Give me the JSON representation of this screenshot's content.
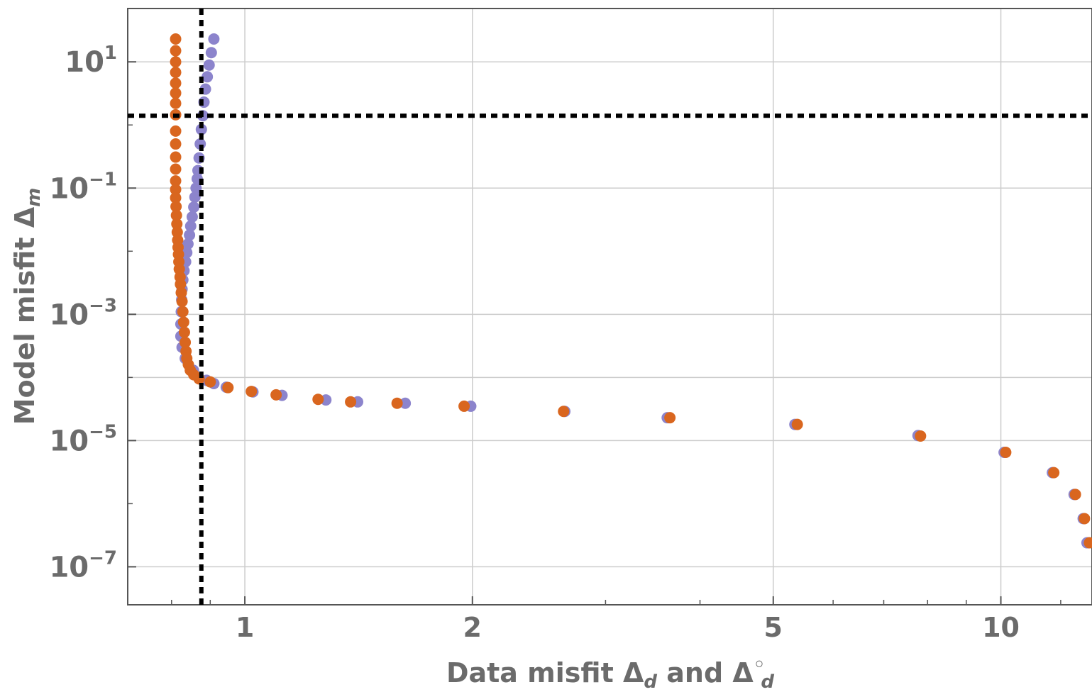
{
  "chart_data": {
    "type": "scatter",
    "title": "",
    "xlabel": "Data misfit Δd and Δ◦d",
    "ylabel": "Model misfit Δm",
    "xlabel_parts": {
      "main": "Data misfit Δ",
      "sub1": "d",
      "mid": " and Δ",
      "sup": "◦",
      "sub2": "d"
    },
    "ylabel_parts": {
      "main": "Model misfit Δ",
      "sub": "m"
    },
    "x_scale": "log",
    "y_scale": "log",
    "xlim": [
      0.7,
      13.2
    ],
    "ylim": [
      2.5e-08,
      70
    ],
    "x_ticks": [
      {
        "value": 1,
        "label": "1"
      },
      {
        "value": 2,
        "label": "2"
      },
      {
        "value": 5,
        "label": "5"
      },
      {
        "value": 10,
        "label": "10"
      }
    ],
    "y_ticks": [
      {
        "value": 10,
        "base": "10",
        "exp": "1"
      },
      {
        "value": 0.1,
        "base": "10",
        "exp": "−1"
      },
      {
        "value": 0.001,
        "base": "10",
        "exp": "−3"
      },
      {
        "value": 1e-05,
        "base": "10",
        "exp": "−5"
      },
      {
        "value": 1e-07,
        "base": "10",
        "exp": "−7"
      }
    ],
    "grid": true,
    "reference_lines": {
      "x": 0.876,
      "y": 1.4
    },
    "colors": {
      "purple": "#8c84cc",
      "orange": "#d9661f",
      "grid": "#cccccc",
      "axis": "#555555",
      "ref": "#000000"
    },
    "series": [
      {
        "color": "#8c84cc",
        "points": [
          [
            0.91,
            23.0
          ],
          [
            0.903,
            14.0
          ],
          [
            0.897,
            8.9
          ],
          [
            0.892,
            5.8
          ],
          [
            0.887,
            3.7
          ],
          [
            0.883,
            2.3
          ],
          [
            0.88,
            1.4
          ],
          [
            0.876,
            0.85
          ],
          [
            0.873,
            0.5
          ],
          [
            0.87,
            0.3
          ],
          [
            0.867,
            0.19
          ],
          [
            0.865,
            0.14
          ],
          [
            0.862,
            0.1
          ],
          [
            0.859,
            0.072
          ],
          [
            0.856,
            0.05
          ],
          [
            0.852,
            0.035
          ],
          [
            0.848,
            0.025
          ],
          [
            0.845,
            0.018
          ],
          [
            0.841,
            0.013
          ],
          [
            0.838,
            0.0095
          ],
          [
            0.835,
            0.0068
          ],
          [
            0.831,
            0.0049
          ],
          [
            0.828,
            0.0035
          ],
          [
            0.826,
            0.0025
          ],
          [
            0.825,
            0.0017
          ],
          [
            0.824,
            0.0011
          ],
          [
            0.823,
            0.0007
          ],
          [
            0.823,
            0.00045
          ],
          [
            0.826,
            0.0003
          ],
          [
            0.834,
            0.0002
          ],
          [
            0.855,
            0.00013
          ],
          [
            0.89,
            9e-05
          ],
          [
            0.91,
            8e-05
          ],
          [
            0.945,
            7e-05
          ],
          [
            1.025,
            5.9e-05
          ],
          [
            1.12,
            5.2e-05
          ],
          [
            1.28,
            4.4e-05
          ],
          [
            1.41,
            4.1e-05
          ],
          [
            1.63,
            3.9e-05
          ],
          [
            1.99,
            3.5e-05
          ],
          [
            2.65,
            2.9e-05
          ],
          [
            3.62,
            2.3e-05
          ],
          [
            5.34,
            1.8e-05
          ],
          [
            7.77,
            1.2e-05
          ],
          [
            10.1,
            6.5e-06
          ],
          [
            11.7,
            3.1e-06
          ],
          [
            12.5,
            1.4e-06
          ],
          [
            12.85,
            5.8e-07
          ],
          [
            13.0,
            2.4e-07
          ]
        ]
      },
      {
        "color": "#d9661f",
        "points": [
          [
            0.81,
            23.0
          ],
          [
            0.81,
            15.0
          ],
          [
            0.81,
            10.0
          ],
          [
            0.81,
            6.8
          ],
          [
            0.81,
            4.6
          ],
          [
            0.81,
            3.2
          ],
          [
            0.81,
            2.2
          ],
          [
            0.81,
            1.45
          ],
          [
            0.81,
            0.8
          ],
          [
            0.81,
            0.5
          ],
          [
            0.81,
            0.31
          ],
          [
            0.81,
            0.2
          ],
          [
            0.81,
            0.13
          ],
          [
            0.81,
            0.095
          ],
          [
            0.81,
            0.07
          ],
          [
            0.811,
            0.051
          ],
          [
            0.812,
            0.037
          ],
          [
            0.813,
            0.027
          ],
          [
            0.814,
            0.02
          ],
          [
            0.815,
            0.015
          ],
          [
            0.816,
            0.0115
          ],
          [
            0.817,
            0.0089
          ],
          [
            0.818,
            0.0068
          ],
          [
            0.819,
            0.0052
          ],
          [
            0.821,
            0.0039
          ],
          [
            0.822,
            0.003
          ],
          [
            0.824,
            0.0022
          ],
          [
            0.826,
            0.0016
          ],
          [
            0.828,
            0.0011
          ],
          [
            0.83,
            0.00075
          ],
          [
            0.832,
            0.00052
          ],
          [
            0.834,
            0.00036
          ],
          [
            0.836,
            0.00026
          ],
          [
            0.838,
            0.0002
          ],
          [
            0.842,
            0.00016
          ],
          [
            0.847,
            0.00013
          ],
          [
            0.856,
            0.00011
          ],
          [
            0.87,
            9.5e-05
          ],
          [
            0.9,
            8.5e-05
          ],
          [
            0.95,
            6.9e-05
          ],
          [
            1.02,
            6e-05
          ],
          [
            1.1,
            5.3e-05
          ],
          [
            1.25,
            4.5e-05
          ],
          [
            1.38,
            4.1e-05
          ],
          [
            1.59,
            3.9e-05
          ],
          [
            1.95,
            3.5e-05
          ],
          [
            2.64,
            2.9e-05
          ],
          [
            3.65,
            2.3e-05
          ],
          [
            5.38,
            1.8e-05
          ],
          [
            7.83,
            1.18e-05
          ],
          [
            10.15,
            6.5e-06
          ],
          [
            11.75,
            3.1e-06
          ],
          [
            12.55,
            1.4e-06
          ],
          [
            12.9,
            5.8e-07
          ],
          [
            13.1,
            2.4e-07
          ]
        ]
      }
    ]
  }
}
